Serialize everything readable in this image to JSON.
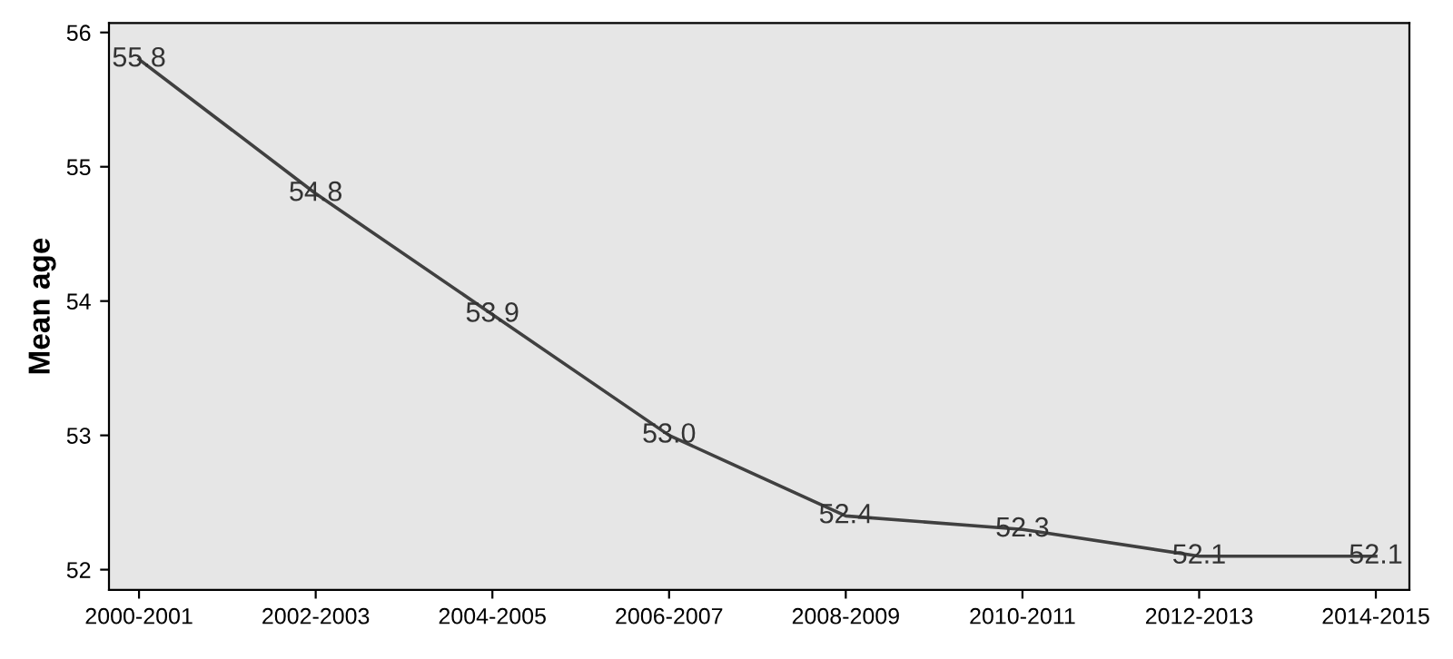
{
  "chart_data": {
    "type": "line",
    "ylabel": "Mean age",
    "categories": [
      "2000-2001",
      "2002-2003",
      "2004-2005",
      "2006-2007",
      "2008-2009",
      "2010-2011",
      "2012-2013",
      "2014-2015"
    ],
    "series": [
      {
        "color": "#404040",
        "values": [
          55.8,
          54.8,
          53.9,
          53.0,
          52.4,
          52.3,
          52.1,
          52.1
        ]
      }
    ],
    "value_labels": [
      "55.8",
      "54.8",
      "53.9",
      "53.0",
      "52.4",
      "52.3",
      "52.1",
      "52.1"
    ],
    "ylim": [
      51.85,
      56.07
    ],
    "yticks": [
      52,
      53,
      54,
      55,
      56
    ],
    "grid": false,
    "marker": "none",
    "line_style": "solid"
  }
}
